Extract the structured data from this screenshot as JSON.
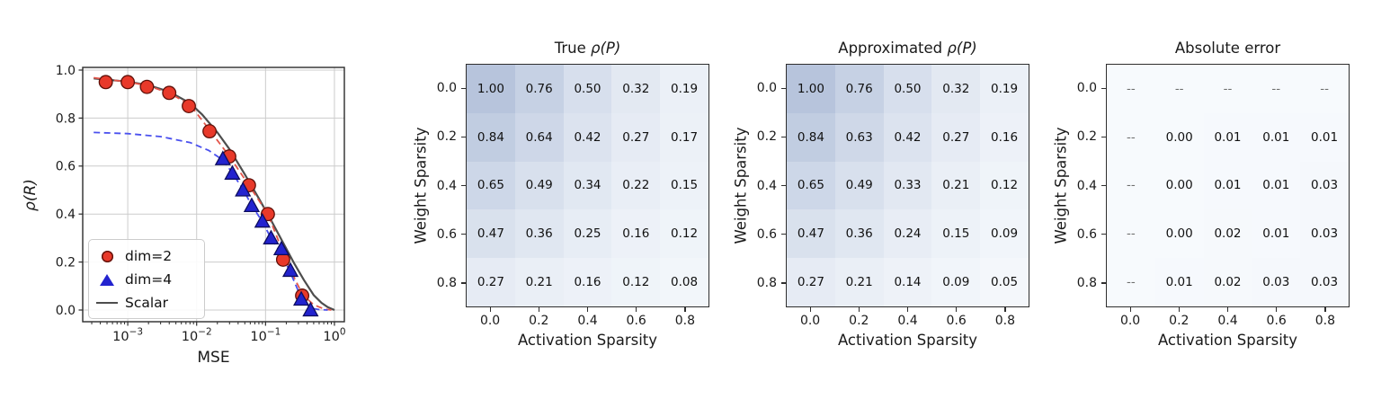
{
  "colors": {
    "background": "#ffffff",
    "spine": "#2b2b2b",
    "grid": "#cccccc",
    "tick_text": "#1a1a1a",
    "scalar_line": "#4d4d4d",
    "dim2_marker": "#e8392a",
    "dim2_edge": "#5f1009",
    "dim2_dash": "#e4554a",
    "dim4_marker": "#2323cf",
    "dim4_edge": "#0d0d5e",
    "dim4_dash": "#4a50ee",
    "heat_low": "#f7fafd",
    "heat_high": "#b7c4dc",
    "heat_border": "#2e2e2e",
    "cell_text": "#111111",
    "masked_text": "#6e6e6e"
  },
  "chart_data": [
    {
      "type": "line",
      "title": "",
      "xlabel": "MSE",
      "ylabel": "ρ(R)",
      "xscale": "log",
      "xlim": [
        0.000222,
        1.393
      ],
      "ylim": [
        -0.0487,
        1.0112
      ],
      "yticks": [
        "0.0",
        "0.2",
        "0.4",
        "0.6",
        "0.8",
        "1.0"
      ],
      "ytick_values": [
        0.0,
        0.2,
        0.4,
        0.6,
        0.8,
        1.0
      ],
      "xtick_exponents": [
        -3,
        -2,
        -1,
        0
      ],
      "grid": true,
      "legend_position": "lower-left",
      "legend": [
        {
          "label": "dim=2",
          "marker": "circle"
        },
        {
          "label": "dim=4",
          "marker": "triangle"
        },
        {
          "label": "Scalar",
          "marker": "line"
        }
      ],
      "series": [
        {
          "name": "Scalar",
          "kind": "line",
          "style": "solid",
          "color_key": "scalar_line",
          "x": [
            0.00032,
            0.0005,
            0.001,
            0.002,
            0.004,
            0.008,
            0.012,
            0.02,
            0.03,
            0.05,
            0.08,
            0.12,
            0.18,
            0.26,
            0.36,
            0.5,
            0.65,
            0.8,
            1.0
          ],
          "y": [
            0.965,
            0.96,
            0.952,
            0.937,
            0.91,
            0.862,
            0.815,
            0.74,
            0.67,
            0.565,
            0.465,
            0.375,
            0.28,
            0.195,
            0.125,
            0.062,
            0.03,
            0.012,
            0.0
          ]
        },
        {
          "name": "dim=2 fit",
          "kind": "line",
          "style": "dashed",
          "color_key": "dim2_dash",
          "x": [
            0.00032,
            0.0005,
            0.001,
            0.002,
            0.004,
            0.008,
            0.0154,
            0.0297,
            0.0574,
            0.108,
            0.18,
            0.27,
            0.35,
            0.5,
            0.7,
            0.9
          ],
          "y": [
            0.968,
            0.961,
            0.951,
            0.934,
            0.904,
            0.856,
            0.75,
            0.642,
            0.52,
            0.4,
            0.24,
            0.125,
            0.062,
            0.022,
            0.005,
            0.0
          ]
        },
        {
          "name": "dim=4 fit",
          "kind": "line",
          "style": "dashed",
          "color_key": "dim4_dash",
          "x": [
            0.00032,
            0.001,
            0.003,
            0.008,
            0.015,
            0.024,
            0.033,
            0.047,
            0.063,
            0.09,
            0.12,
            0.17,
            0.23,
            0.33,
            0.45,
            0.6,
            0.8
          ],
          "y": [
            0.74,
            0.735,
            0.723,
            0.698,
            0.665,
            0.625,
            0.572,
            0.503,
            0.437,
            0.368,
            0.3,
            0.235,
            0.155,
            0.05,
            0.008,
            0.002,
            0.0
          ]
        },
        {
          "name": "dim=2",
          "kind": "scatter",
          "marker": "circle",
          "color_key": "dim2_marker",
          "edge_key": "dim2_edge",
          "x": [
            0.00048,
            0.001,
            0.0019,
            0.004,
            0.0077,
            0.0154,
            0.0297,
            0.0574,
            0.108,
            0.18,
            0.34
          ],
          "y": [
            0.95,
            0.95,
            0.93,
            0.905,
            0.85,
            0.745,
            0.64,
            0.52,
            0.4,
            0.21,
            0.06
          ]
        },
        {
          "name": "dim=4",
          "kind": "scatter",
          "marker": "triangle",
          "color_key": "dim4_marker",
          "edge_key": "dim4_edge",
          "x": [
            0.024,
            0.033,
            0.047,
            0.063,
            0.09,
            0.12,
            0.17,
            0.23,
            0.33,
            0.45
          ],
          "y": [
            0.63,
            0.57,
            0.5,
            0.435,
            0.37,
            0.3,
            0.255,
            0.165,
            0.045,
            0.0
          ]
        }
      ]
    },
    {
      "type": "heatmap",
      "title_prefix": "True ",
      "title_symbol": "ρ(P)",
      "xlabel": "Activation Sparsity",
      "ylabel": "Weight Sparsity",
      "row_labels": [
        "0.0",
        "0.2",
        "0.4",
        "0.6",
        "0.8"
      ],
      "col_labels": [
        "0.0",
        "0.2",
        "0.4",
        "0.6",
        "0.8"
      ],
      "values": [
        [
          "1.00",
          "0.76",
          "0.50",
          "0.32",
          "0.19"
        ],
        [
          "0.84",
          "0.64",
          "0.42",
          "0.27",
          "0.17"
        ],
        [
          "0.65",
          "0.49",
          "0.34",
          "0.22",
          "0.15"
        ],
        [
          "0.47",
          "0.36",
          "0.25",
          "0.16",
          "0.12"
        ],
        [
          "0.27",
          "0.21",
          "0.16",
          "0.12",
          "0.08"
        ]
      ]
    },
    {
      "type": "heatmap",
      "title_prefix": "Approximated ",
      "title_symbol": "ρ(P)",
      "xlabel": "Activation Sparsity",
      "ylabel": "Weight Sparsity",
      "row_labels": [
        "0.0",
        "0.2",
        "0.4",
        "0.6",
        "0.8"
      ],
      "col_labels": [
        "0.0",
        "0.2",
        "0.4",
        "0.6",
        "0.8"
      ],
      "values": [
        [
          "1.00",
          "0.76",
          "0.50",
          "0.32",
          "0.19"
        ],
        [
          "0.84",
          "0.63",
          "0.42",
          "0.27",
          "0.16"
        ],
        [
          "0.65",
          "0.49",
          "0.33",
          "0.21",
          "0.12"
        ],
        [
          "0.47",
          "0.36",
          "0.24",
          "0.15",
          "0.09"
        ],
        [
          "0.27",
          "0.21",
          "0.14",
          "0.09",
          "0.05"
        ]
      ]
    },
    {
      "type": "heatmap",
      "title_prefix": "Absolute error",
      "title_symbol": "",
      "xlabel": "Activation Sparsity",
      "ylabel": "Weight Sparsity",
      "row_labels": [
        "0.0",
        "0.2",
        "0.4",
        "0.6",
        "0.8"
      ],
      "col_labels": [
        "0.0",
        "0.2",
        "0.4",
        "0.6",
        "0.8"
      ],
      "values": [
        [
          "--",
          "--",
          "--",
          "--",
          "--"
        ],
        [
          "--",
          "0.00",
          "0.01",
          "0.01",
          "0.01"
        ],
        [
          "--",
          "0.00",
          "0.01",
          "0.01",
          "0.03"
        ],
        [
          "--",
          "0.00",
          "0.02",
          "0.01",
          "0.03"
        ],
        [
          "--",
          "0.01",
          "0.02",
          "0.03",
          "0.03"
        ]
      ]
    }
  ]
}
